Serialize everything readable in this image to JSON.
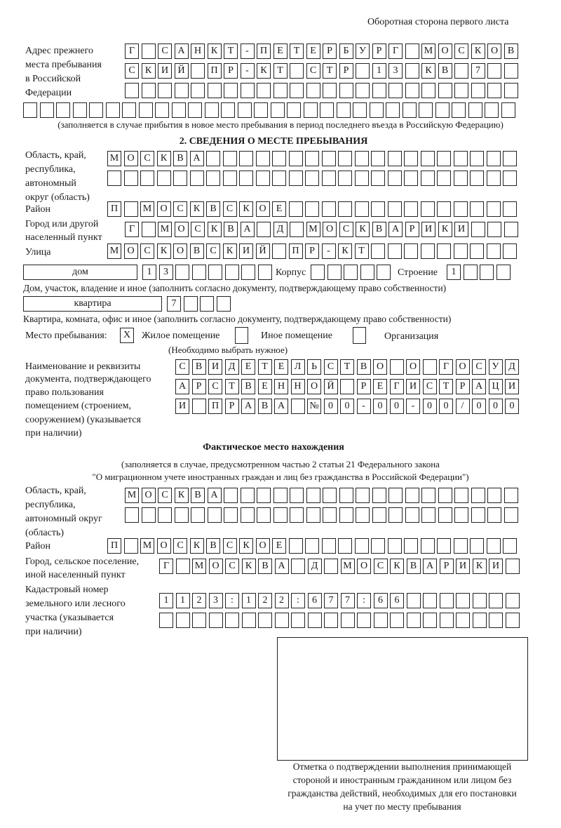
{
  "header": {
    "side_label": "Оборотная сторона первого листа"
  },
  "prev_address": {
    "label": [
      "Адрес прежнего",
      "места пребывания",
      "в Российской",
      "Федерации"
    ],
    "lines": [
      "Г САНКТ-ПЕТЕРБУРГ МОСКОВ",
      "СКИЙ ПР-КТ СТР 13 КВ 7",
      "",
      ""
    ],
    "note": "(заполняется в случае прибытия в новое место пребывания в период последнего въезда в Российскую Федерацию)"
  },
  "section2": {
    "title": "2. СВЕДЕНИЯ О МЕСТЕ ПРЕБЫВАНИЯ",
    "region_label": [
      "Область, край,",
      "республика,",
      "автономный",
      "округ (область)"
    ],
    "region_lines": [
      "МОСКВА",
      ""
    ],
    "district_label": "Район",
    "district": "П МОСКВСКОЕ",
    "city_label": [
      "Город или другой",
      "населенный пункт"
    ],
    "city": "Г МОСКВА Д МОСКВАРИКИ",
    "street_label": "Улица",
    "street": "МОСКОВСКИЙ ПР-КТ",
    "house_type": "дом",
    "house_number": "13",
    "korpus_label": "Корпус",
    "korpus": "",
    "building_label": "Строение",
    "building": "1",
    "house_note": "Дом, участок, владение и иное (заполнить согласно документу, подтверждающему право собственности)",
    "apt_type": "квартира",
    "apt_number": "7",
    "apt_note": "Квартира, комната, офис и иное (заполнить согласно документу, подтверждающему право собственности)",
    "stay_label": "Место пребывания:",
    "stay_options": [
      {
        "label": "Жилое помещение",
        "mark": "X",
        "checked": true
      },
      {
        "label": "Иное помещение",
        "mark": "",
        "checked": false
      },
      {
        "label": "Организация",
        "mark": "",
        "checked": false
      }
    ],
    "stay_note": "(Необходимо выбрать нужное)",
    "doc_label": [
      "Наименование и реквизиты",
      "документа, подтверждающего",
      "право пользования",
      "помещением (строением,",
      "сооружением) (указывается",
      "при наличии)"
    ],
    "doc_lines": [
      "СВИДЕТЕЛЬСТВО О ГОСУД",
      "АРСТВЕННОЙ РЕГИСТРАЦИ",
      "И ПРАВА №00-00-00/000"
    ]
  },
  "actual": {
    "title": "Фактическое место нахождения",
    "note": [
      "(заполняется в случае, предусмотренном частью 2 статьи 21 Федерального закона",
      "\"О миграционном учете иностранных граждан и лиц без гражданства в Российской Федерации\")"
    ],
    "region_label": [
      "Область, край,",
      "республика,",
      "автономный округ",
      "(область)"
    ],
    "region_lines": [
      "МОСКВА",
      ""
    ],
    "district_label": "Район",
    "district": "П МОСКВСКОЕ",
    "city_label": [
      "Город, сельское поселение,",
      "иной населенный пункт"
    ],
    "city": "Г МОСКВА Д МОСКВАРИКИ",
    "cadastral_label": [
      "Кадастровый номер",
      "земельного или лесного",
      "участка (указывается",
      "при наличии)"
    ],
    "cadastral_lines": [
      "1123:122:677:66",
      ""
    ]
  },
  "stamp": {
    "caption": [
      "Отметка о подтверждении выполнения принимающей",
      "стороной и иностранным гражданином или лицом без",
      "гражданства действий, необходимых для его постановки",
      "на учет по месту пребывания"
    ]
  }
}
